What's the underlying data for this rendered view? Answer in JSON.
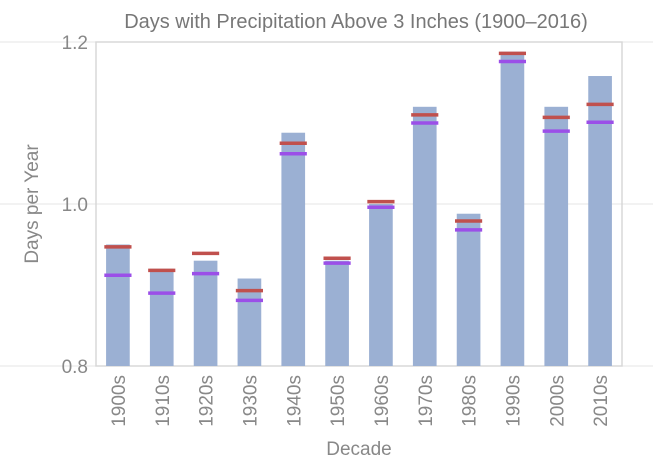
{
  "chart_data": {
    "type": "bar",
    "title": "Days with Precipitation Above 3 Inches (1900–2016)",
    "xlabel": "Decade",
    "ylabel": "Days per Year",
    "ylim": [
      0.8,
      1.2
    ],
    "yticks": [
      0.8,
      1.0,
      1.2
    ],
    "ytick_labels": [
      "0.8",
      "1.0",
      "1.2"
    ],
    "grid": true,
    "categories": [
      "1900s",
      "1910s",
      "1920s",
      "1930s",
      "1940s",
      "1950s",
      "1960s",
      "1970s",
      "1980s",
      "1990s",
      "2000s",
      "2010s"
    ],
    "values": [
      0.95,
      0.92,
      0.93,
      0.908,
      1.088,
      0.93,
      1.0,
      1.12,
      0.988,
      1.188,
      1.12,
      1.158
    ],
    "series": [
      {
        "name": "Bar value",
        "values": [
          0.95,
          0.92,
          0.93,
          0.908,
          1.088,
          0.93,
          1.0,
          1.12,
          0.988,
          1.188,
          1.12,
          1.158
        ],
        "color": "#9bb0d3"
      },
      {
        "name": "Red marker",
        "values": [
          0.947,
          0.918,
          0.939,
          0.893,
          1.075,
          0.933,
          1.003,
          1.11,
          0.979,
          1.186,
          1.107,
          1.123
        ],
        "color": "#c0504d"
      },
      {
        "name": "Purple marker",
        "values": [
          0.912,
          0.89,
          0.914,
          0.881,
          1.062,
          0.927,
          0.996,
          1.1,
          0.968,
          1.176,
          1.09,
          1.101
        ],
        "color": "#9b4fe8"
      }
    ]
  }
}
